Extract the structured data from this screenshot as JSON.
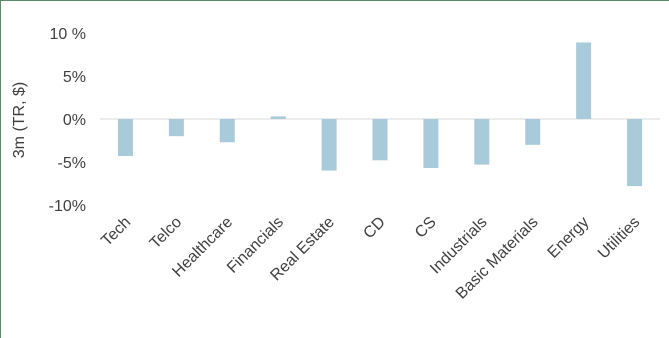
{
  "chart_data": {
    "type": "bar",
    "ylabel": "3m  (TR, $)",
    "categories": [
      "Tech",
      "Telco",
      "Healthcare",
      "Financials",
      "Real Estate",
      "CD",
      "CS",
      "Industrials",
      "Basic Materials",
      "Energy",
      "Utilities"
    ],
    "values": [
      -4.3,
      -2.0,
      -2.7,
      0.3,
      -6.0,
      -4.8,
      -5.7,
      -5.3,
      -3.0,
      8.9,
      -7.8
    ],
    "ylim": [
      -10,
      10
    ],
    "yticks": [
      {
        "value": 10,
        "label": "10 %"
      },
      {
        "value": 5,
        "label": "5%"
      },
      {
        "value": 0,
        "label": "0%"
      },
      {
        "value": -5,
        "label": "-5%"
      },
      {
        "value": -10,
        "label": "-10%"
      }
    ],
    "grid": false,
    "colors": {
      "bar": "#a8cad9",
      "axis": "#d9d9d9",
      "text": "#404040"
    }
  }
}
